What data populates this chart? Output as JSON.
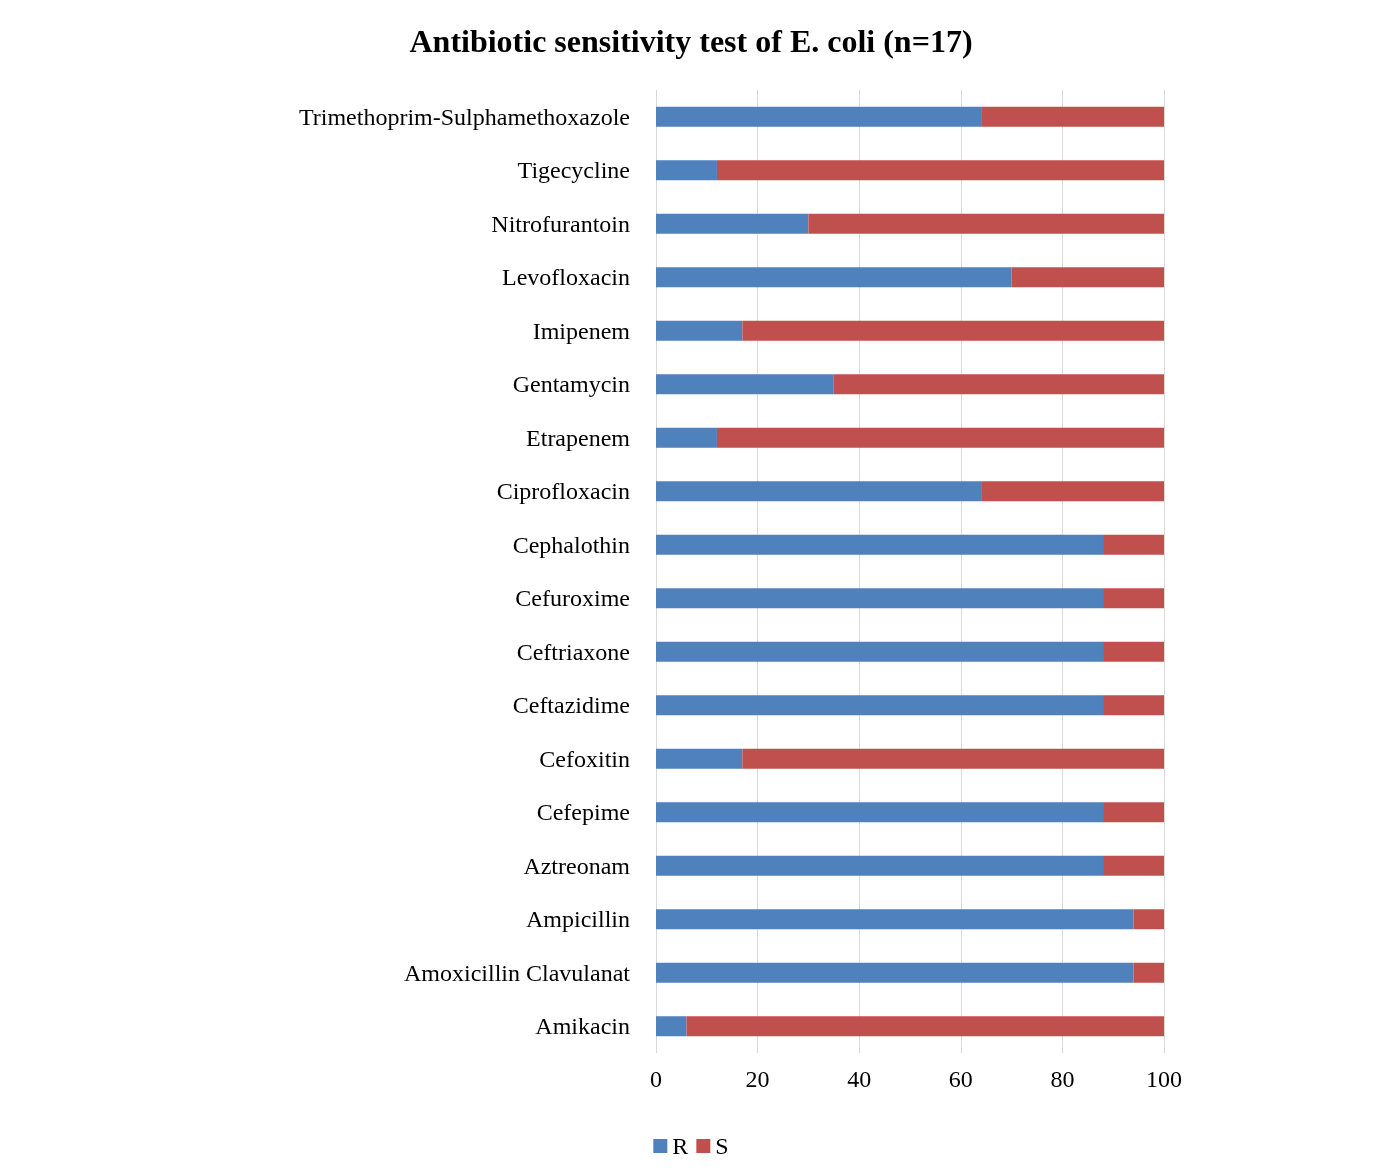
{
  "chart_data": {
    "type": "bar",
    "orientation": "horizontal",
    "stacked": true,
    "title": "Antibiotic sensitivity test of E. coli (n=17)",
    "categories": [
      "Trimethoprim-Sulphamethoxazole",
      "Tigecycline",
      "Nitrofurantoin",
      "Levofloxacin",
      "Imipenem",
      "Gentamycin",
      "Etrapenem",
      "Ciprofloxacin",
      "Cephalothin",
      "Cefuroxime",
      "Ceftriaxone",
      "Ceftazidime",
      "Cefoxitin",
      "Cefepime",
      "Aztreonam",
      "Ampicillin",
      "Amoxicillin Clavulanat",
      "Amikacin"
    ],
    "series": [
      {
        "name": "R",
        "color": "#4f81bd",
        "values": [
          64,
          12,
          30,
          70,
          17,
          35,
          12,
          64,
          88,
          88,
          88,
          88,
          17,
          88,
          88,
          94,
          94,
          6
        ]
      },
      {
        "name": "S",
        "color": "#c0504d",
        "values": [
          36,
          88,
          70,
          30,
          83,
          65,
          88,
          36,
          12,
          12,
          12,
          12,
          83,
          12,
          12,
          6,
          6,
          94
        ]
      }
    ],
    "xlim": [
      0,
      100
    ],
    "xticks": [
      0,
      20,
      40,
      60,
      80,
      100
    ],
    "grid": "x",
    "legend": "bottom"
  }
}
